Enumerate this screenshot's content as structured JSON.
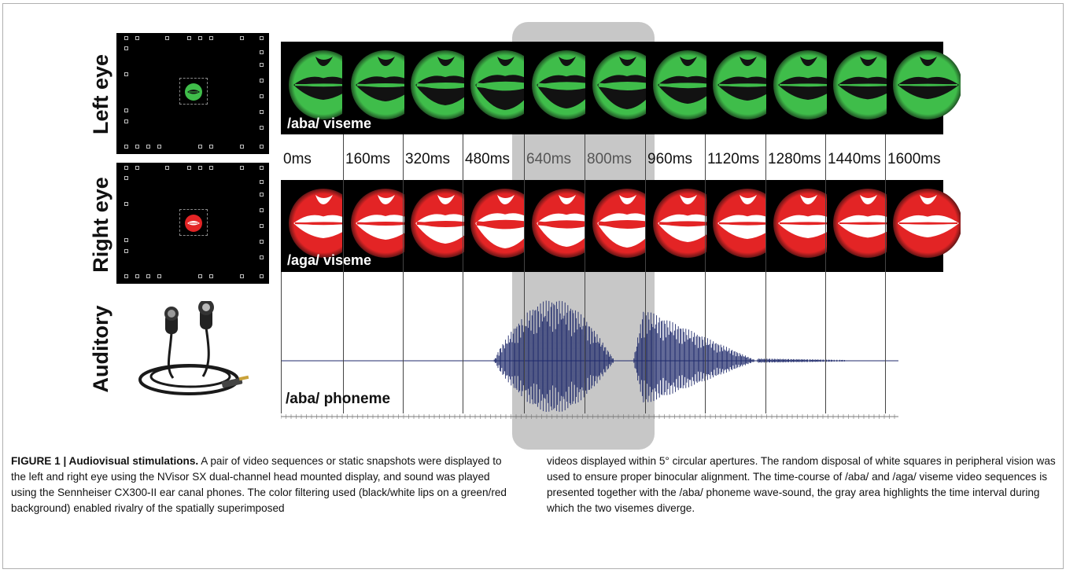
{
  "figure": {
    "row_labels": {
      "left_eye": "Left eye",
      "right_eye": "Right eye",
      "auditory": "Auditory"
    },
    "viseme_labels": {
      "left": "/aba/ viseme",
      "right": "/aga/ viseme"
    },
    "phoneme_label": "/aba/ phoneme",
    "times": [
      "0ms",
      "160ms",
      "320ms",
      "480ms",
      "640ms",
      "800ms",
      "960ms",
      "1120ms",
      "1280ms",
      "1440ms",
      "1600ms"
    ],
    "colors": {
      "green": "#3fbd4a",
      "red": "#e32425",
      "waveform": "#1f2a6b",
      "highlight": "#bdbdbd"
    }
  },
  "caption": {
    "heading": "FIGURE 1 | Audiovisual stimulations.",
    "col1_body": " A pair of video sequences or static snapshots were displayed to the left and right eye using the NVisor SX dual-channel head mounted display, and sound was played using the Sennheiser CX300-II ear canal phones. The color filtering used (black/white lips on a green/red background) enabled rivalry of the spatially superimposed",
    "col2_body": "videos displayed within 5° circular apertures. The random disposal of white squares in peripheral vision was used to ensure proper binocular alignment. The time-course of /aba/ and /aga/ viseme video sequences is presented together with the /aba/ phoneme wave-sound, the gray area highlights the time interval during which the two visemes diverge."
  }
}
